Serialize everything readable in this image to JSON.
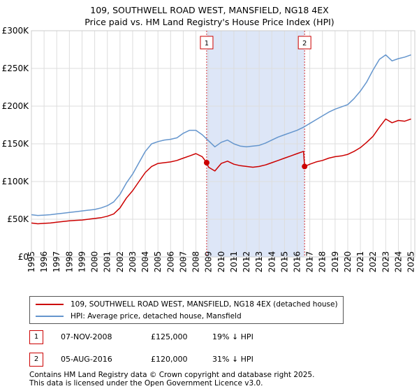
{
  "header": {
    "title_line1": "109, SOUTHWELL ROAD WEST, MANSFIELD, NG18 4EX",
    "title_line2": "Price paid vs. HM Land Registry's House Price Index (HPI)"
  },
  "colors": {
    "property": "#cc0000",
    "hpi": "#6495cd",
    "band": "#dde6f7",
    "grid": "#dddddd"
  },
  "chart_data": {
    "type": "line",
    "title": "109, SOUTHWELL ROAD WEST, MANSFIELD, NG18 4EX — Price paid vs. HM Land Registry's House Price Index (HPI)",
    "xlabel": "",
    "ylabel": "",
    "xlim": [
      1995,
      2025.3
    ],
    "ylim": [
      0,
      300000
    ],
    "y_ticks": [
      {
        "value": 0,
        "label": "£0"
      },
      {
        "value": 50000,
        "label": "£50K"
      },
      {
        "value": 100000,
        "label": "£100K"
      },
      {
        "value": 150000,
        "label": "£150K"
      },
      {
        "value": 200000,
        "label": "£200K"
      },
      {
        "value": 250000,
        "label": "£250K"
      },
      {
        "value": 300000,
        "label": "£300K"
      }
    ],
    "x_ticks": [
      "1995",
      "1996",
      "1997",
      "1998",
      "1999",
      "2000",
      "2001",
      "2002",
      "2003",
      "2004",
      "2005",
      "2006",
      "2007",
      "2008",
      "2009",
      "2010",
      "2011",
      "2012",
      "2013",
      "2014",
      "2015",
      "2016",
      "2017",
      "2018",
      "2019",
      "2020",
      "2021",
      "2022",
      "2023",
      "2024",
      "2025"
    ],
    "shaded_region": [
      2008.85,
      2016.59
    ],
    "series": [
      {
        "name": "109, SOUTHWELL ROAD WEST, MANSFIELD, NG18 4EX (detached house)",
        "x": [
          1995.0,
          1995.5,
          1996.0,
          1996.5,
          1997.0,
          1997.5,
          1998.0,
          1998.5,
          1999.0,
          1999.5,
          2000.0,
          2000.5,
          2001.0,
          2001.5,
          2002.0,
          2002.5,
          2003.0,
          2003.5,
          2004.0,
          2004.5,
          2005.0,
          2005.5,
          2006.0,
          2006.5,
          2007.0,
          2007.5,
          2008.0,
          2008.5,
          2008.85,
          2009.0,
          2009.5,
          2010.0,
          2010.5,
          2011.0,
          2011.5,
          2012.0,
          2012.5,
          2013.0,
          2013.5,
          2014.0,
          2014.5,
          2015.0,
          2015.5,
          2016.0,
          2016.5,
          2016.59,
          2017.0,
          2017.5,
          2018.0,
          2018.5,
          2019.0,
          2019.5,
          2020.0,
          2020.5,
          2021.0,
          2021.5,
          2022.0,
          2022.5,
          2023.0,
          2023.5,
          2024.0,
          2024.5,
          2025.0
        ],
        "values": [
          45000,
          44000,
          44500,
          45000,
          46000,
          47000,
          48000,
          48500,
          49000,
          50000,
          51000,
          52000,
          54000,
          57000,
          65000,
          78000,
          88000,
          100000,
          112000,
          120000,
          124000,
          125000,
          126000,
          128000,
          131000,
          134000,
          137000,
          133000,
          125000,
          119000,
          114000,
          124000,
          127000,
          123000,
          121000,
          120000,
          119000,
          120000,
          122000,
          125000,
          128000,
          131000,
          134000,
          137000,
          140000,
          120000,
          123000,
          126000,
          128000,
          131000,
          133000,
          134000,
          136000,
          140000,
          145000,
          152000,
          160000,
          172000,
          183000,
          178000,
          181000,
          180000,
          183000
        ]
      },
      {
        "name": "HPI: Average price, detached house, Mansfield",
        "x": [
          1995.0,
          1995.5,
          1996.0,
          1996.5,
          1997.0,
          1997.5,
          1998.0,
          1998.5,
          1999.0,
          1999.5,
          2000.0,
          2000.5,
          2001.0,
          2001.5,
          2002.0,
          2002.5,
          2003.0,
          2003.5,
          2004.0,
          2004.5,
          2005.0,
          2005.5,
          2006.0,
          2006.5,
          2007.0,
          2007.5,
          2008.0,
          2008.5,
          2009.0,
          2009.5,
          2010.0,
          2010.5,
          2011.0,
          2011.5,
          2012.0,
          2012.5,
          2013.0,
          2013.5,
          2014.0,
          2014.5,
          2015.0,
          2015.5,
          2016.0,
          2016.5,
          2017.0,
          2017.5,
          2018.0,
          2018.5,
          2019.0,
          2019.5,
          2020.0,
          2020.5,
          2021.0,
          2021.5,
          2022.0,
          2022.5,
          2023.0,
          2023.5,
          2024.0,
          2024.5,
          2025.0
        ],
        "values": [
          56000,
          55000,
          55500,
          56000,
          57000,
          58000,
          59000,
          60000,
          61000,
          62000,
          63000,
          65000,
          68000,
          73000,
          83000,
          98000,
          110000,
          125000,
          140000,
          150000,
          153000,
          155000,
          156000,
          158000,
          164000,
          168000,
          168000,
          162000,
          154000,
          146000,
          152000,
          155000,
          150000,
          147000,
          146000,
          147000,
          148000,
          151000,
          155000,
          159000,
          162000,
          165000,
          168000,
          172000,
          177000,
          182000,
          187000,
          192000,
          196000,
          199000,
          202000,
          210000,
          220000,
          232000,
          248000,
          262000,
          268000,
          260000,
          263000,
          265000,
          268000
        ]
      }
    ],
    "markers": [
      {
        "label": "1",
        "x": 2008.85,
        "y": 125000
      },
      {
        "label": "2",
        "x": 2016.59,
        "y": 120000
      }
    ]
  },
  "legend": {
    "property_label": "109, SOUTHWELL ROAD WEST, MANSFIELD, NG18 4EX (detached house)",
    "hpi_label": "HPI: Average price, detached house, Mansfield"
  },
  "sales": [
    {
      "badge": "1",
      "date": "07-NOV-2008",
      "price": "£125,000",
      "hpi_diff": "19% ↓ HPI"
    },
    {
      "badge": "2",
      "date": "05-AUG-2016",
      "price": "£120,000",
      "hpi_diff": "31% ↓ HPI"
    }
  ],
  "footer": {
    "line1": "Contains HM Land Registry data © Crown copyright and database right 2025.",
    "line2": "This data is licensed under the Open Government Licence v3.0."
  }
}
